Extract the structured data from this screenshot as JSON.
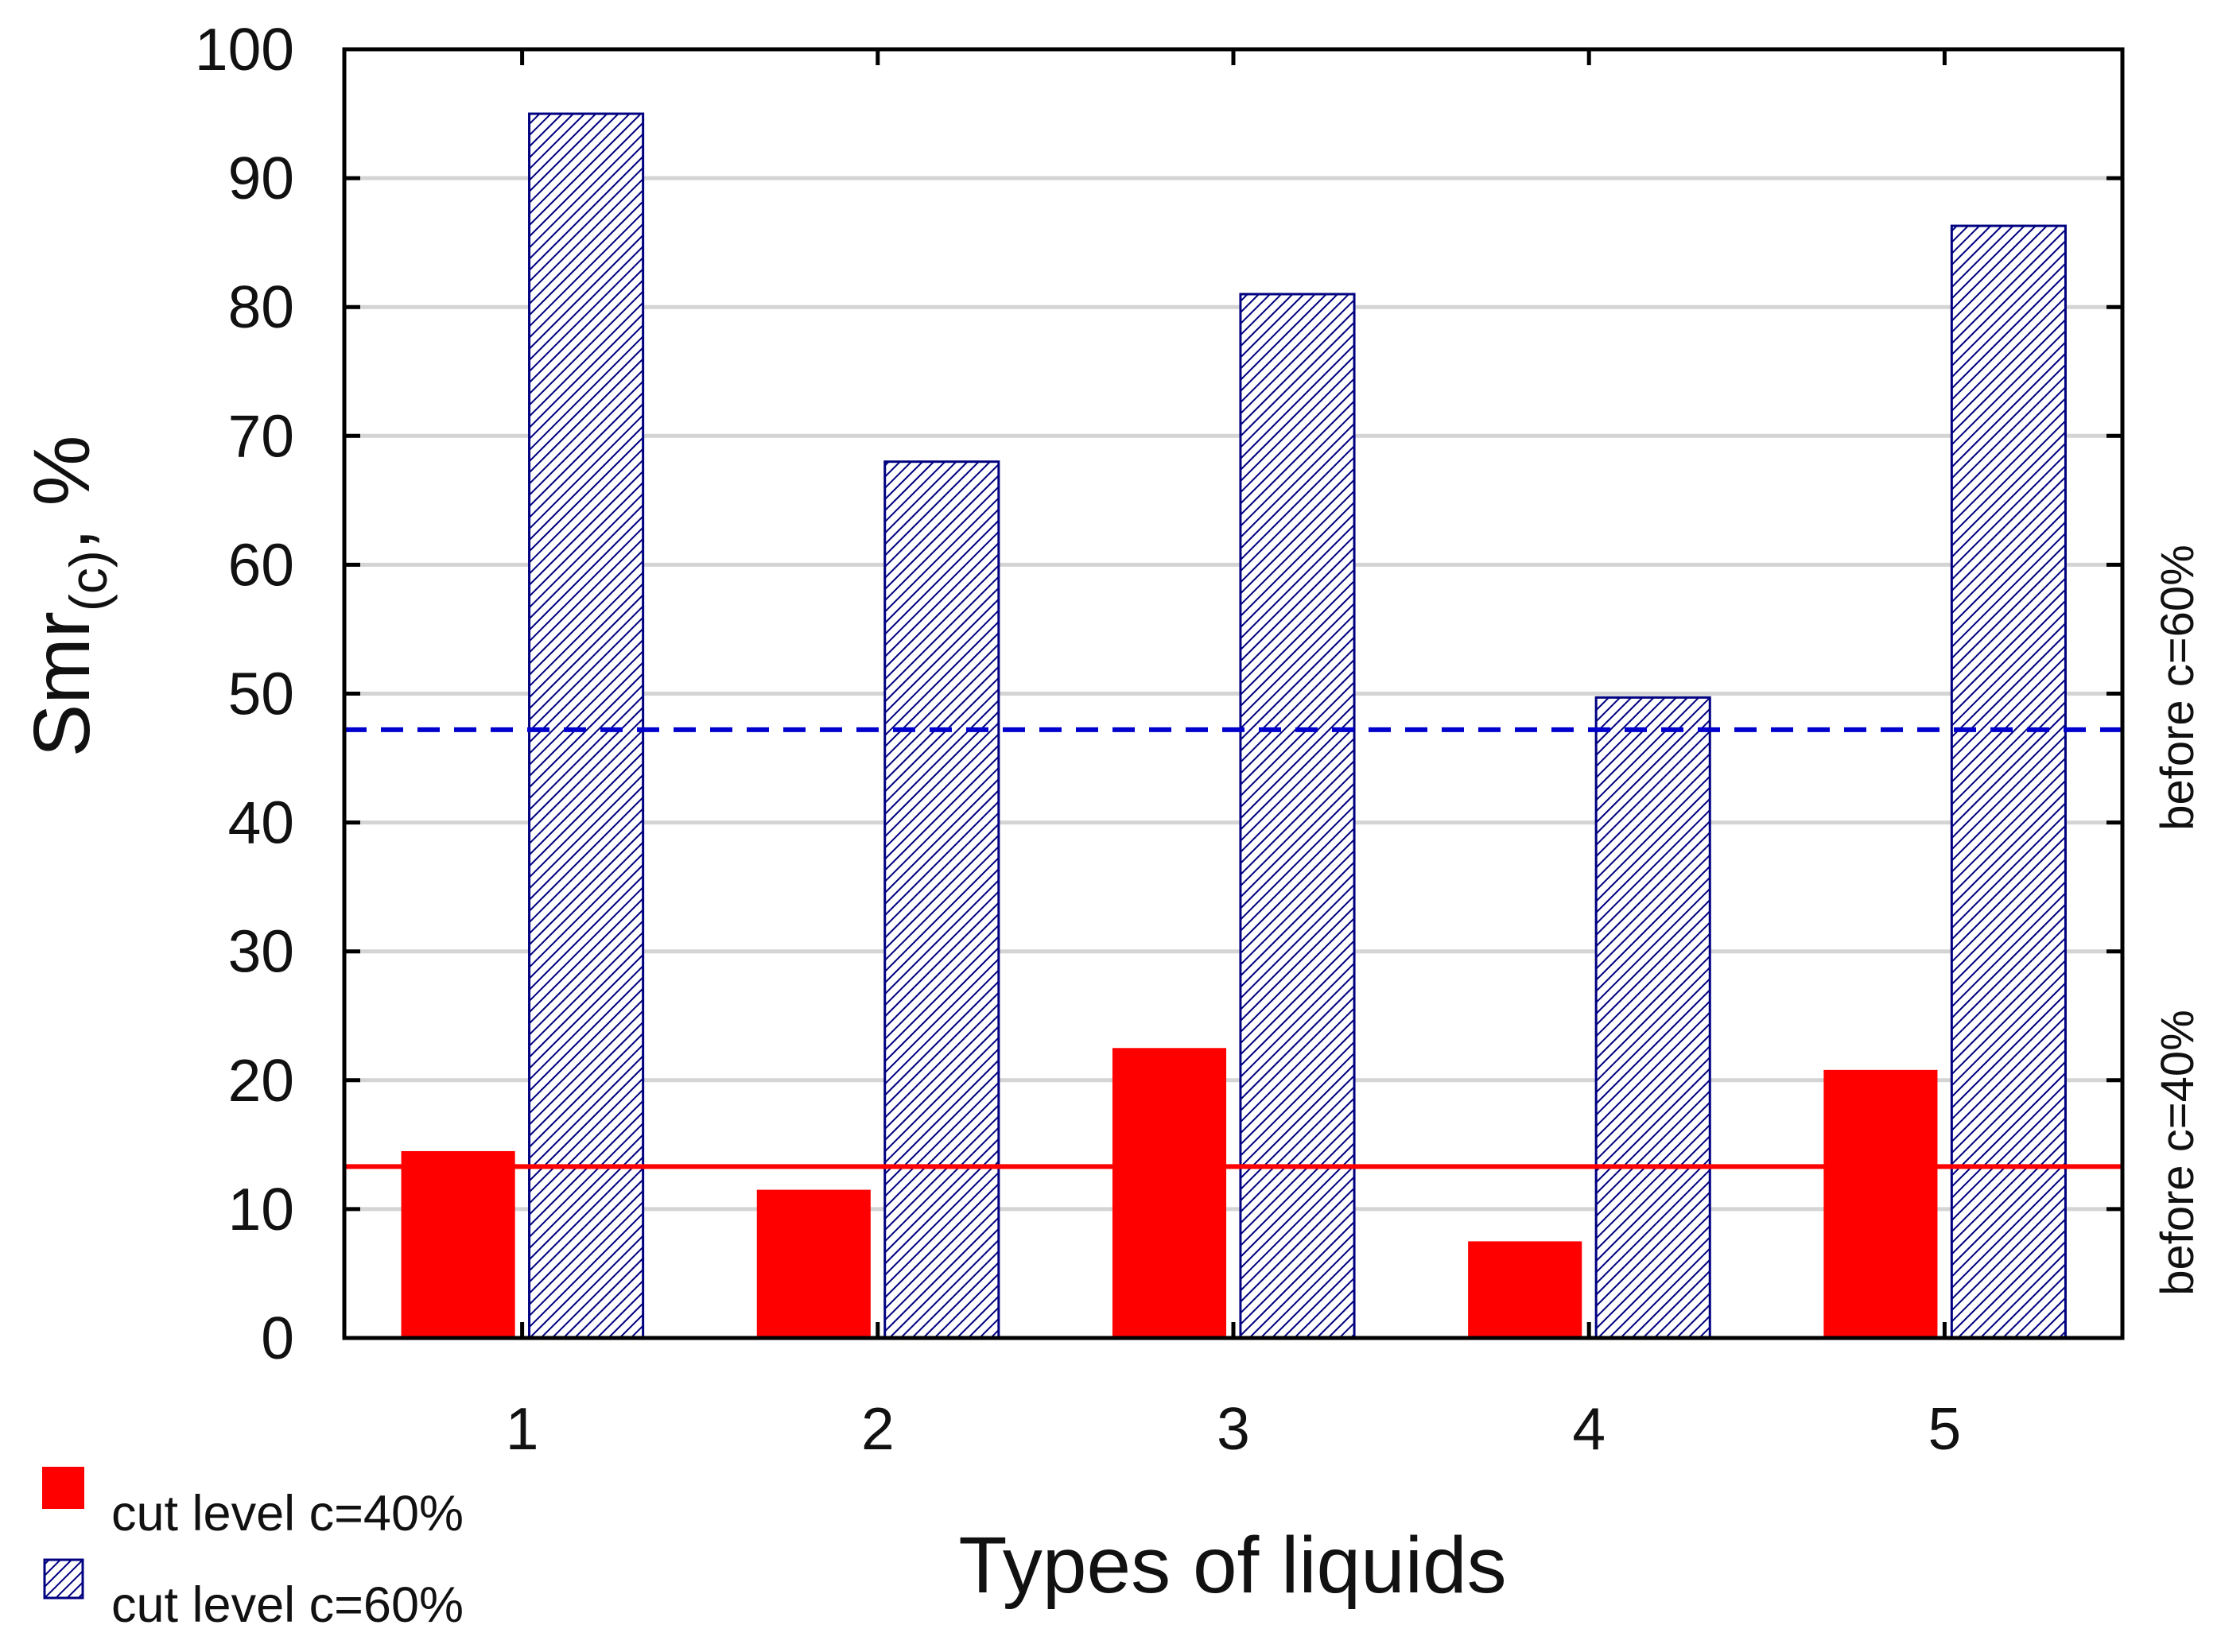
{
  "chart_data": {
    "type": "bar",
    "title": "",
    "xlabel": "Types of liquids",
    "ylabel": {
      "main": "Smr",
      "subscript": "(c)",
      "suffix": ", %"
    },
    "categories": [
      "1",
      "2",
      "3",
      "4",
      "5"
    ],
    "ylim": [
      0,
      100
    ],
    "yticks": [
      "0",
      "10",
      "20",
      "30",
      "40",
      "50",
      "60",
      "70",
      "80",
      "90",
      "100"
    ],
    "grid": true,
    "series": [
      {
        "name": "cut level c=40%",
        "values": [
          14.5,
          11.5,
          22.5,
          7.5,
          20.8
        ],
        "color": "#ff0000",
        "pattern": "solid"
      },
      {
        "name": "cut level c=60%",
        "values": [
          95,
          68,
          81,
          49.7,
          86.3
        ],
        "color": "#000080",
        "pattern": "hatched"
      }
    ],
    "reference_lines": [
      {
        "label": "before c=40%",
        "value": 13.3,
        "color": "#ff0000",
        "style": "solid"
      },
      {
        "label": "before c=60%",
        "value": 47.2,
        "color": "#0000cc",
        "style": "dashed"
      }
    ],
    "legend_position": "bottom-left"
  }
}
